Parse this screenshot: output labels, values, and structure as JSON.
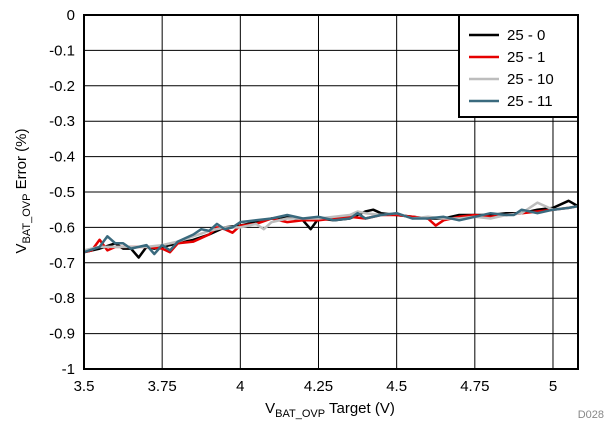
{
  "chart_data": {
    "type": "line",
    "xlabel_main": "V",
    "xlabel_sub": "BAT_OVP",
    "xlabel_rest": " Target (V)",
    "ylabel_main": "V",
    "ylabel_sub": "BAT_OVP",
    "ylabel_rest": " Error (%)",
    "xlim": [
      3.5,
      5.08
    ],
    "ylim": [
      -1,
      0
    ],
    "x_ticks": [
      3.5,
      3.75,
      4,
      4.25,
      4.5,
      4.75,
      5
    ],
    "x_tick_labels": [
      "3.5",
      "3.75",
      "4",
      "4.25",
      "4.5",
      "4.75",
      "5"
    ],
    "y_ticks": [
      0,
      -0.1,
      -0.2,
      -0.3,
      -0.4,
      -0.5,
      -0.6,
      -0.7,
      -0.8,
      -0.9,
      -1
    ],
    "y_tick_labels": [
      "0",
      "-0.1",
      "-0.2",
      "-0.3",
      "-0.4",
      "-0.5",
      "-0.6",
      "-0.7",
      "-0.8",
      "-0.9",
      "-1"
    ],
    "grid": true,
    "legend_position": "top-right",
    "footnote": "D028",
    "series": [
      {
        "name": "25 - 0",
        "color": "#000000",
        "x": [
          3.5,
          3.55,
          3.6,
          3.625,
          3.65,
          3.675,
          3.7,
          3.725,
          3.75,
          3.8,
          3.85,
          3.9,
          3.95,
          4.0,
          4.05,
          4.1,
          4.15,
          4.2,
          4.225,
          4.25,
          4.3,
          4.35,
          4.4,
          4.425,
          4.45,
          4.5,
          4.55,
          4.6,
          4.65,
          4.7,
          4.75,
          4.8,
          4.85,
          4.9,
          4.95,
          5.0,
          5.05,
          5.08
        ],
        "y": [
          -0.67,
          -0.66,
          -0.645,
          -0.66,
          -0.66,
          -0.685,
          -0.655,
          -0.66,
          -0.655,
          -0.645,
          -0.635,
          -0.62,
          -0.6,
          -0.595,
          -0.585,
          -0.575,
          -0.57,
          -0.58,
          -0.605,
          -0.575,
          -0.58,
          -0.575,
          -0.555,
          -0.55,
          -0.56,
          -0.565,
          -0.57,
          -0.575,
          -0.575,
          -0.565,
          -0.565,
          -0.565,
          -0.56,
          -0.56,
          -0.55,
          -0.545,
          -0.525,
          -0.54
        ]
      },
      {
        "name": "25 - 1",
        "color": "#e60000",
        "x": [
          3.5,
          3.525,
          3.55,
          3.575,
          3.6,
          3.65,
          3.7,
          3.75,
          3.775,
          3.8,
          3.85,
          3.9,
          3.925,
          3.95,
          3.975,
          4.0,
          4.05,
          4.1,
          4.15,
          4.2,
          4.25,
          4.3,
          4.35,
          4.4,
          4.45,
          4.5,
          4.55,
          4.6,
          4.625,
          4.65,
          4.7,
          4.75,
          4.8,
          4.85,
          4.9,
          4.95,
          5.0,
          5.05,
          5.08
        ],
        "y": [
          -0.67,
          -0.665,
          -0.635,
          -0.665,
          -0.655,
          -0.655,
          -0.655,
          -0.66,
          -0.67,
          -0.645,
          -0.64,
          -0.62,
          -0.6,
          -0.605,
          -0.615,
          -0.595,
          -0.59,
          -0.575,
          -0.585,
          -0.58,
          -0.58,
          -0.575,
          -0.57,
          -0.575,
          -0.565,
          -0.565,
          -0.57,
          -0.575,
          -0.595,
          -0.58,
          -0.57,
          -0.565,
          -0.57,
          -0.565,
          -0.56,
          -0.555,
          -0.55,
          -0.545,
          -0.54
        ]
      },
      {
        "name": "25 - 10",
        "color": "#bdbdbd",
        "x": [
          3.5,
          3.55,
          3.6,
          3.65,
          3.7,
          3.75,
          3.8,
          3.85,
          3.9,
          3.95,
          4.0,
          4.05,
          4.075,
          4.1,
          4.15,
          4.2,
          4.25,
          4.3,
          4.35,
          4.375,
          4.4,
          4.45,
          4.5,
          4.55,
          4.6,
          4.65,
          4.7,
          4.75,
          4.8,
          4.85,
          4.9,
          4.95,
          5.0,
          5.05,
          5.08
        ],
        "y": [
          -0.665,
          -0.655,
          -0.655,
          -0.655,
          -0.655,
          -0.65,
          -0.64,
          -0.625,
          -0.61,
          -0.6,
          -0.6,
          -0.59,
          -0.605,
          -0.585,
          -0.575,
          -0.575,
          -0.575,
          -0.57,
          -0.565,
          -0.555,
          -0.56,
          -0.565,
          -0.56,
          -0.575,
          -0.57,
          -0.575,
          -0.575,
          -0.57,
          -0.575,
          -0.565,
          -0.56,
          -0.53,
          -0.55,
          -0.545,
          -0.54
        ]
      },
      {
        "name": "25 - 11",
        "color": "#3a6a7e",
        "x": [
          3.5,
          3.55,
          3.575,
          3.6,
          3.625,
          3.65,
          3.7,
          3.725,
          3.75,
          3.775,
          3.8,
          3.85,
          3.875,
          3.9,
          3.925,
          3.95,
          3.975,
          4.0,
          4.05,
          4.1,
          4.15,
          4.2,
          4.25,
          4.3,
          4.35,
          4.375,
          4.4,
          4.45,
          4.5,
          4.55,
          4.6,
          4.65,
          4.7,
          4.75,
          4.8,
          4.85,
          4.875,
          4.9,
          4.95,
          5.0,
          5.05,
          5.08
        ],
        "y": [
          -0.67,
          -0.655,
          -0.625,
          -0.645,
          -0.645,
          -0.66,
          -0.65,
          -0.675,
          -0.65,
          -0.665,
          -0.64,
          -0.62,
          -0.605,
          -0.61,
          -0.59,
          -0.605,
          -0.6,
          -0.585,
          -0.58,
          -0.575,
          -0.565,
          -0.575,
          -0.57,
          -0.58,
          -0.575,
          -0.56,
          -0.575,
          -0.565,
          -0.56,
          -0.575,
          -0.575,
          -0.57,
          -0.58,
          -0.57,
          -0.56,
          -0.565,
          -0.565,
          -0.55,
          -0.56,
          -0.55,
          -0.545,
          -0.54
        ]
      }
    ]
  }
}
